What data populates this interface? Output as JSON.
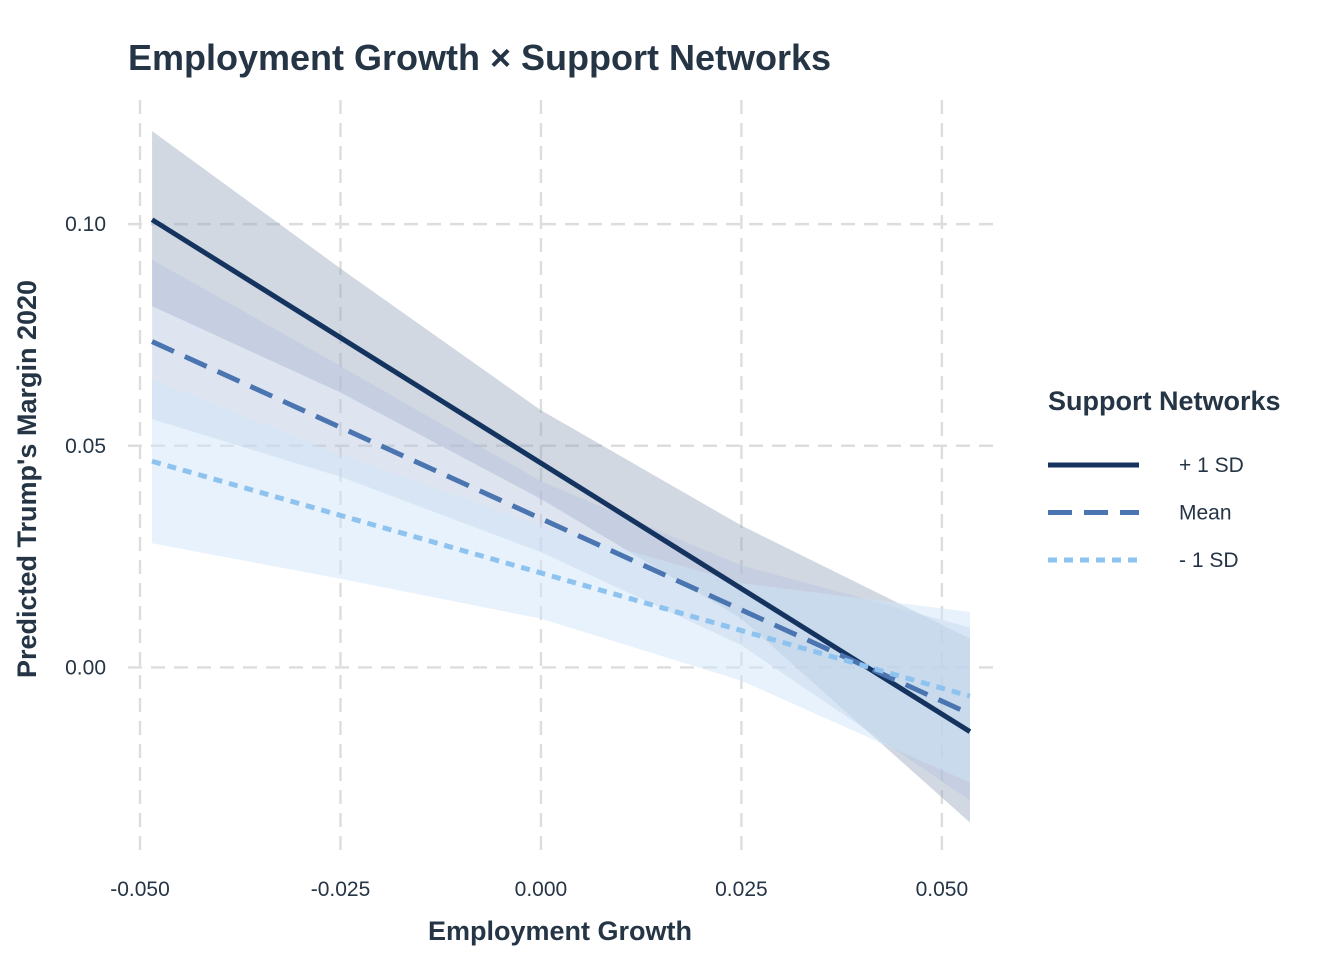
{
  "chart_data": {
    "type": "line",
    "title": "Employment Growth × Support Networks",
    "xlabel": "Employment Growth",
    "ylabel": "Predicted Trump's Margin 2020",
    "xlim": [
      -0.0515,
      0.0565
    ],
    "ylim": [
      -0.043,
      0.128
    ],
    "x_ticks": [
      -0.05,
      -0.025,
      0.0,
      0.025,
      0.05
    ],
    "x_tick_labels": [
      "-0.050",
      "-0.025",
      "0.000",
      "0.025",
      "0.050"
    ],
    "y_ticks": [
      0.0,
      0.05,
      0.1
    ],
    "y_tick_labels": [
      "0.00",
      "0.05",
      "0.10"
    ],
    "grid": true,
    "legend": {
      "title": "Support Networks",
      "position": "right"
    },
    "x": [
      -0.0485,
      0.0535
    ],
    "series": [
      {
        "name": "+ 1 SD",
        "line_style": "solid",
        "color": "#14335f",
        "band_color": "#9aa8be",
        "band_opacity": 0.45,
        "values": [
          0.101,
          -0.0145
        ],
        "band": [
          {
            "x": -0.0485,
            "lower": 0.0815,
            "upper": 0.121
          },
          {
            "x": -0.025,
            "lower": 0.062,
            "upper": 0.09
          },
          {
            "x": 0.0,
            "lower": 0.038,
            "upper": 0.058
          },
          {
            "x": 0.025,
            "lower": 0.011,
            "upper": 0.032
          },
          {
            "x": 0.0535,
            "lower": -0.035,
            "upper": 0.0065
          }
        ]
      },
      {
        "name": "Mean",
        "line_style": "dashed",
        "color": "#4a75b0",
        "band_color": "#b5c6e0",
        "band_opacity": 0.45,
        "values": [
          0.0735,
          -0.0105
        ],
        "band": [
          {
            "x": -0.0485,
            "lower": 0.056,
            "upper": 0.092
          },
          {
            "x": -0.025,
            "lower": 0.043,
            "upper": 0.068
          },
          {
            "x": 0.0,
            "lower": 0.026,
            "upper": 0.042
          },
          {
            "x": 0.025,
            "lower": 0.005,
            "upper": 0.023
          },
          {
            "x": 0.0535,
            "lower": -0.03,
            "upper": 0.009
          }
        ]
      },
      {
        "name": "- 1 SD",
        "line_style": "dotted",
        "color": "#8fc3ef",
        "band_color": "#cfe6fa",
        "band_opacity": 0.5,
        "values": [
          0.0465,
          -0.0065
        ],
        "band": [
          {
            "x": -0.0485,
            "lower": 0.028,
            "upper": 0.065
          },
          {
            "x": -0.025,
            "lower": 0.02,
            "upper": 0.048
          },
          {
            "x": 0.0,
            "lower": 0.011,
            "upper": 0.032
          },
          {
            "x": 0.025,
            "lower": -0.003,
            "upper": 0.019
          },
          {
            "x": 0.0535,
            "lower": -0.026,
            "upper": 0.0125
          }
        ]
      }
    ]
  }
}
